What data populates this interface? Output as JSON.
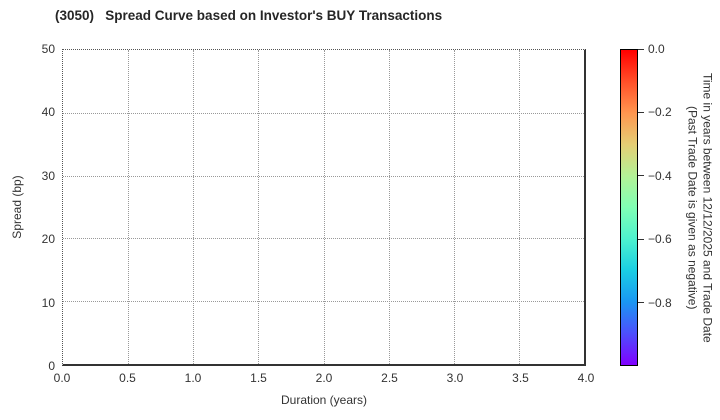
{
  "chart_data": {
    "type": "scatter",
    "title": "(3050)   Spread Curve based on Investor's BUY Transactions",
    "xlabel": "Duration (years)",
    "ylabel": "Spread (bp)",
    "xlim": [
      0.0,
      4.0
    ],
    "ylim": [
      0,
      50
    ],
    "x_ticks": {
      "values": [
        0,
        0.5,
        1,
        1.5,
        2,
        2.5,
        3,
        3.5,
        4
      ],
      "labels": [
        "0.0",
        "0.5",
        "1.0",
        "1.5",
        "2.0",
        "2.5",
        "3.0",
        "3.5",
        "4.0"
      ]
    },
    "y_ticks": {
      "values": [
        0,
        10,
        20,
        30,
        40,
        50
      ],
      "labels": [
        "0",
        "10",
        "20",
        "30",
        "40",
        "50"
      ]
    },
    "grid": "dotted",
    "points": [],
    "colorbar": {
      "label_line1": "Time in years between 12/12/2025 and Trade Date",
      "label_line2": "(Past Trade Date is given as negative)",
      "vmax": 0.0,
      "vmin": -1.0,
      "ticks": {
        "values": [
          0,
          -0.2,
          -0.4,
          -0.6,
          -0.8
        ],
        "labels": [
          "0.0",
          "−0.2",
          "−0.4",
          "−0.6",
          "−0.8"
        ]
      },
      "colormap": "rainbow",
      "gradient_stops": [
        {
          "pos": 0,
          "color": "#ff0000"
        },
        {
          "pos": 10,
          "color": "#ff4f28"
        },
        {
          "pos": 20,
          "color": "#ff964f"
        },
        {
          "pos": 30,
          "color": "#e5ce74"
        },
        {
          "pos": 40,
          "color": "#b3f296"
        },
        {
          "pos": 50,
          "color": "#80ffb4"
        },
        {
          "pos": 60,
          "color": "#4df2ce"
        },
        {
          "pos": 70,
          "color": "#1acee3"
        },
        {
          "pos": 80,
          "color": "#1a96f2"
        },
        {
          "pos": 90,
          "color": "#4d4ffc"
        },
        {
          "pos": 100,
          "color": "#8000ff"
        }
      ]
    },
    "colors": {
      "grid": "#999999",
      "spine_solid": "#333333",
      "spine_dotted": "#555555",
      "text": "#333333",
      "title_text": "#262626"
    }
  }
}
